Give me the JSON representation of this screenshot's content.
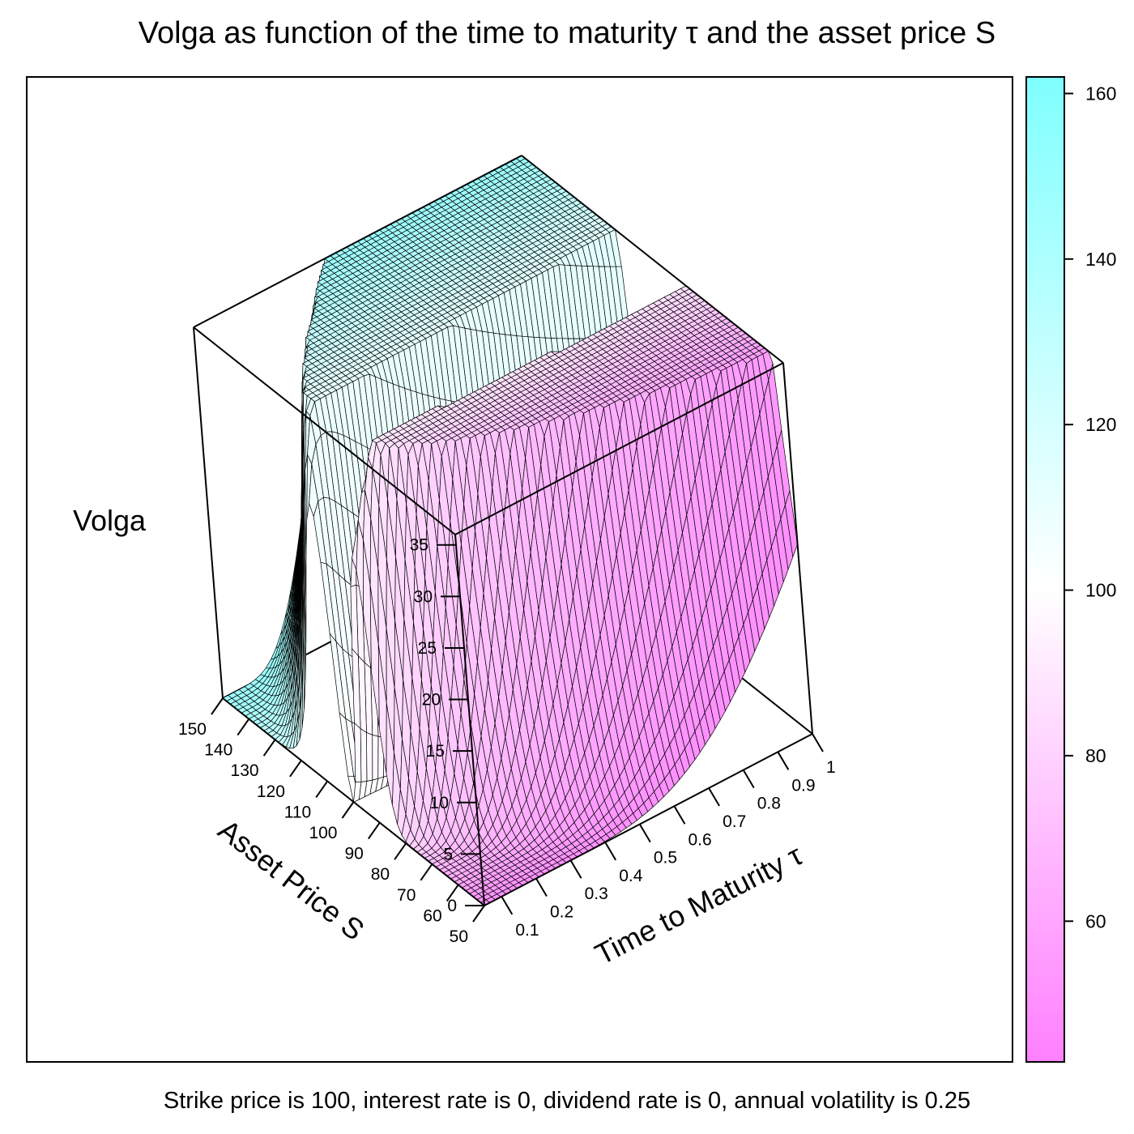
{
  "chart_data": {
    "type": "surface",
    "title": "Volga as function of the time to maturity τ and the asset price S",
    "caption": "Strike price is 100, interest rate is 0, dividend rate is 0, annual volatility is 0.25",
    "zlabel": "Volga",
    "xlabel": "Asset Price S",
    "ylabel": "Time to Maturity  τ",
    "x_ticks": [
      "50",
      "60",
      "70",
      "80",
      "90",
      "100",
      "110",
      "120",
      "130",
      "140",
      "150"
    ],
    "y_ticks": [
      "0.1",
      "0.2",
      "0.3",
      "0.4",
      "0.5",
      "0.6",
      "0.7",
      "0.8",
      "0.9",
      "1"
    ],
    "z_ticks": [
      "0",
      "5",
      "10",
      "15",
      "20",
      "25",
      "30",
      "35"
    ],
    "xlim": [
      50,
      150
    ],
    "ylim": [
      0.05,
      1
    ],
    "zlim": [
      0,
      36
    ],
    "parameters": {
      "strike": 100,
      "interest_rate": 0,
      "dividend_rate": 0,
      "volatility": 0.25
    },
    "colorbar": {
      "ticks": [
        "60",
        "80",
        "100",
        "120",
        "140",
        "160"
      ],
      "range": [
        43,
        162
      ],
      "colors": [
        "#ff80ff",
        "#ffffff",
        "#80ffff"
      ]
    },
    "surface_color_variable": "Asset Price S"
  }
}
